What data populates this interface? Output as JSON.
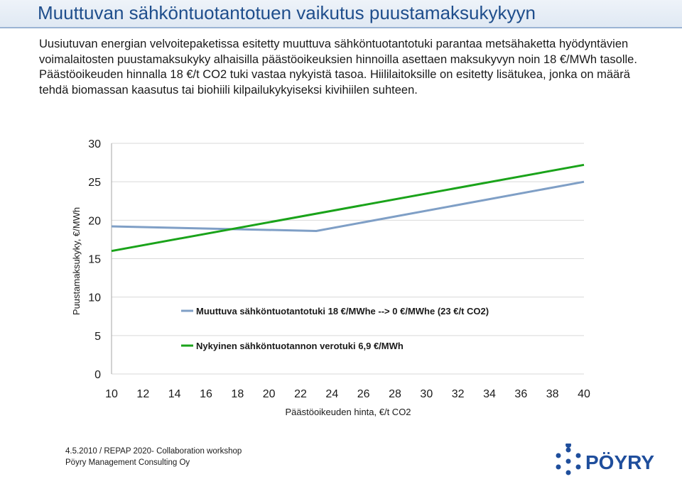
{
  "header": {
    "title": "Muuttuvan sähköntuotantotuen vaikutus puustamaksukykyyn"
  },
  "body": {
    "paragraphs": [
      "Uusiutuvan energian velvoitepaketissa esitetty muuttuva sähköntuotantotuki parantaa metsähaketta hyödyntävien voimalaitosten puustamaksukyky alhaisilla päästöoikeuksien hinnoilla asettaen maksukyvyn noin 18 €/MWh tasolle. Päästöoikeuden hinnalla 18 €/t CO2 tuki vastaa nykyistä tasoa. Hiililaitoksille on esitetty lisätukea, jonka on määrä tehdä biomassan kaasutus tai biohiili kilpailukykyiseksi kivihiilen suhteen."
    ]
  },
  "chart_data": {
    "type": "line",
    "xlabel": "Päästöoikeuden hinta, €/t CO2",
    "ylabel": "Puustamaksukyky, €/MWh",
    "xlim": [
      10,
      40
    ],
    "ylim": [
      0,
      30
    ],
    "x_ticks": [
      "10",
      "12",
      "14",
      "16",
      "18",
      "20",
      "22",
      "24",
      "26",
      "28",
      "30",
      "32",
      "34",
      "36",
      "38",
      "40"
    ],
    "y_ticks": [
      "0",
      "5",
      "10",
      "15",
      "20",
      "25",
      "30"
    ],
    "grid": "horizontal",
    "legend_position": "lower-right",
    "series": [
      {
        "name": "Muuttuva sähköntuotantotuki 18 €/MWhe --> 0 €/MWhe (23 €/t CO2)",
        "color": "#7f9fc6",
        "x": [
          10,
          23,
          40
        ],
        "y": [
          19.2,
          18.6,
          25.0
        ]
      },
      {
        "name": "Nykyinen sähköntuotannon verotuki 6,9 €/MWh",
        "color": "#1aa31a",
        "x": [
          10,
          40
        ],
        "y": [
          16.0,
          27.2
        ]
      }
    ]
  },
  "footer": {
    "line1": "4.5.2010 / REPAP 2020- Collaboration workshop",
    "line2": "Pöyry Management Consulting Oy"
  },
  "logo": {
    "text": "PÖYRY",
    "color": "#1f4e9c"
  }
}
